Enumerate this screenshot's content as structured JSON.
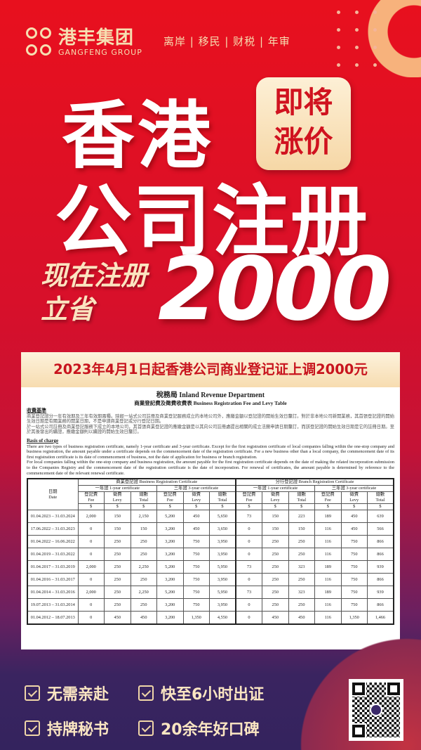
{
  "brand": {
    "name_cn": "港丰集团",
    "name_en": "GANGFENG GROUP",
    "colors": {
      "primary": "#e8101e",
      "gold": "#f6dfb1",
      "purple": "#34235e"
    }
  },
  "tagline": "离岸 | 移民 | 财税 | 年审",
  "hero": {
    "line1": "香港",
    "line2": "公司注册",
    "badge": [
      "即将",
      "涨价"
    ],
    "save": [
      "现在注册",
      "立省"
    ],
    "amount": "2000"
  },
  "banner": "2023年4月1日起香港公司商业登记证上调2000元",
  "document": {
    "title": "稅務局 Inland Revenue Department",
    "subtitle": "商業登記費及徵費收費表  Business Registration Fee and Levy Table",
    "cn_heading": "收費基準",
    "cn_para1": "商業登記證分一年有效期及三年有效期兩種。除經一站式公司註冊及商業登記服務成立的本地公司外，應繳金額以登記證的開始生效日釐訂。對於非本地公司新開業務，其首張登記證的開始生效日期是有關業務的開業日期，不是申請商業登記或分行登記日期。",
    "cn_para2": "於一站式公司註冊及商業登記服務下成立的本地公司，其首張商業登記證的應繳金額是以其向公司註冊處提出相關的成立法團申請日期釐訂，而該登記證的開始生效日期是它的註冊日期。至於其後發出的續證，應繳金額則以續證的開始生效日釐訂。",
    "en_heading": "Basis of charge",
    "en_para1": "There are two types of business registration certificate, namely 1-year certificate and 3-year certificate. Except for the first registration certificate of local companies falling within the one-stop company and business registration, the amount payable under a certificate depends on the commencement date of the registration certificate. For a new business other than a local company, the commencement date of its first registration certificate is its date of commencement of business, not the date of application for business or branch registration.",
    "en_para2": "For local companies falling within the one-stop company and business registration, the amount payable for the first registration certificate depends on the date of making the related incorporation submission to the Companies Registry and the commencement date of the registration certificate is the date of incorporation. For renewal of certificates, the amount payable is determined by reference to the commencement date of the relevant renewal certificate.",
    "table": {
      "date_header": [
        "日期",
        "Date"
      ],
      "groups": [
        "商業登記證 Business Registration Certificate",
        "分行登記證 Branch Registration Certificate"
      ],
      "subgroups": [
        "一年證 1-year certificate",
        "三年證 3-year certificate",
        "一年證 1-year certificate",
        "三年證 3-year certificate"
      ],
      "cols": [
        [
          "登記費",
          "Fee"
        ],
        [
          "徵費",
          "Levy"
        ],
        [
          "總數",
          "Total"
        ]
      ],
      "unit": "$",
      "rows": [
        [
          "01.04.2023 – 31.03.2024",
          "2,000",
          "150",
          "2,150",
          "5,200",
          "450",
          "5,650",
          "73",
          "150",
          "223",
          "189",
          "450",
          "639"
        ],
        [
          "17.06.2022 – 31.03.2023",
          "0",
          "150",
          "150",
          "3,200",
          "450",
          "3,650",
          "0",
          "150",
          "150",
          "116",
          "450",
          "566"
        ],
        [
          "01.04.2022 – 16.06.2022",
          "0",
          "250",
          "250",
          "3,200",
          "750",
          "3,950",
          "0",
          "250",
          "250",
          "116",
          "750",
          "866"
        ],
        [
          "01.04.2019 – 31.03.2022",
          "0",
          "250",
          "250",
          "3,200",
          "750",
          "3,950",
          "0",
          "250",
          "250",
          "116",
          "750",
          "866"
        ],
        [
          "01.04.2017 – 31.03.2019",
          "2,000",
          "250",
          "2,250",
          "5,200",
          "750",
          "5,950",
          "73",
          "250",
          "323",
          "189",
          "750",
          "939"
        ],
        [
          "01.04.2016 – 31.03.2017",
          "0",
          "250",
          "250",
          "3,200",
          "750",
          "3,950",
          "0",
          "250",
          "250",
          "116",
          "750",
          "866"
        ],
        [
          "01.04.2014 – 31.03.2016",
          "2,000",
          "250",
          "2,250",
          "5,200",
          "750",
          "5,950",
          "73",
          "250",
          "323",
          "189",
          "750",
          "939"
        ],
        [
          "19.07.2013 – 31.03.2014",
          "0",
          "250",
          "250",
          "3,200",
          "750",
          "3,950",
          "0",
          "250",
          "250",
          "116",
          "750",
          "866"
        ],
        [
          "01.04.2012 – 18.07.2013",
          "0",
          "450",
          "450",
          "3,200",
          "1,350",
          "4,550",
          "0",
          "450",
          "450",
          "116",
          "1,350",
          "1,466"
        ]
      ]
    }
  },
  "features": [
    "无需亲赴",
    "快至6小时出证",
    "持牌秘书",
    "20余年好口碑"
  ]
}
